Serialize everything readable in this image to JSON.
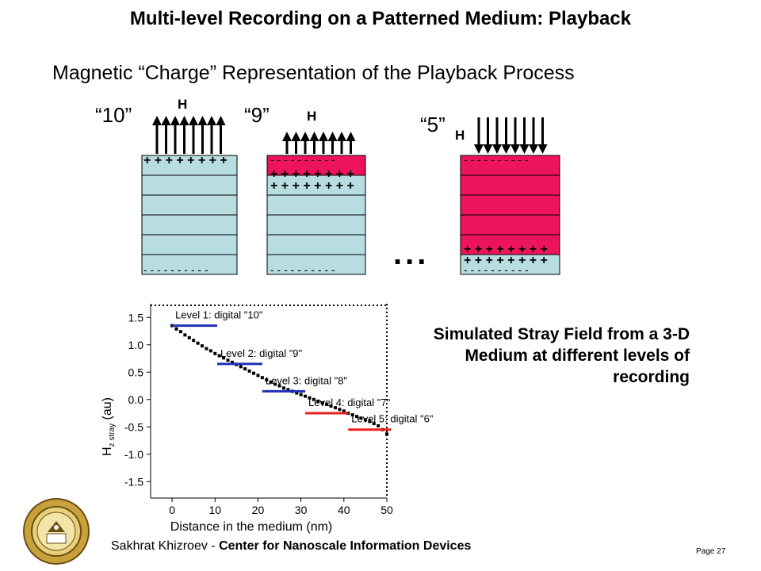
{
  "title": "Multi-level Recording on a Patterned Medium: Playback",
  "subtitle": "Magnetic “Charge” Representation of the Playback Process",
  "diagrams": [
    {
      "label": "“10”",
      "h_label": "H",
      "plus_row": "+ + + + + + + +",
      "minus_row_top": "",
      "plus_row2": "",
      "minus_row_bottom": "- - - - - - - - - -"
    },
    {
      "label": "“9”",
      "h_label": "H",
      "minus_row_top": "- - - - - - - - - -",
      "plus_row": "+ + + + + + + +",
      "plus_row2": "+ + + + + + + +",
      "minus_row_bottom": "- - - - - - - - - -"
    },
    {
      "label": "“5”",
      "h_label": "H",
      "minus_row_top": "- - - - - - - - - -",
      "plus_row": "+ + + + + + + +",
      "plus_row2": "+ + + + + + + +",
      "minus_row_bottom": "- - - - - - - - - -"
    }
  ],
  "ellipsis": "...",
  "side_text": [
    "Simulated Stray Field from a 3-D",
    "Medium at different levels of",
    "recording"
  ],
  "colors": {
    "layer": "#b7dde1",
    "magnetized": "#ee145b",
    "level_blue": "#1f2fb5",
    "level_red": "#e8201c"
  },
  "chart_data": {
    "type": "scatter",
    "xlabel": "Distance in the medium (nm)",
    "ylabel": "H z stray (au)",
    "ylabel_main": "H",
    "ylabel_sub": "z stray",
    "ylabel_unit": " (au)",
    "xlim": [
      -5,
      50
    ],
    "ylim": [
      -1.8,
      1.75
    ],
    "x_ticks": [
      0,
      10,
      20,
      30,
      40,
      50
    ],
    "y_ticks": [
      1.5,
      1.0,
      0.5,
      0.0,
      -0.5,
      -1.0,
      -1.5
    ],
    "x_tick_labels": [
      "0",
      "10",
      "20",
      "30",
      "40",
      "50"
    ],
    "y_tick_labels": [
      "1.5",
      "1.0",
      "0.5",
      "0.0",
      "-0.5",
      "-1.0",
      "-1.5"
    ],
    "series": [
      {
        "x": [
          0,
          1,
          2,
          3,
          4,
          5,
          6,
          7,
          8,
          9,
          10,
          11,
          12,
          13,
          14,
          15,
          16,
          17,
          18,
          19,
          20,
          21,
          22,
          23,
          24,
          25,
          26,
          27,
          28,
          29,
          30,
          31,
          32,
          33,
          34,
          35,
          36,
          37,
          38,
          39,
          40,
          41,
          42,
          43,
          44,
          45,
          46,
          47,
          48,
          49,
          50
        ],
        "y": [
          1.35,
          1.29,
          1.24,
          1.18,
          1.13,
          1.08,
          1.03,
          0.98,
          0.93,
          0.89,
          0.84,
          0.8,
          0.76,
          0.72,
          0.68,
          0.64,
          0.6,
          0.56,
          0.52,
          0.48,
          0.44,
          0.4,
          0.36,
          0.32,
          0.28,
          0.25,
          0.21,
          0.18,
          0.15,
          0.12,
          0.09,
          0.06,
          0.03,
          0.0,
          -0.03,
          -0.06,
          -0.09,
          -0.12,
          -0.15,
          -0.18,
          -0.21,
          -0.25,
          -0.28,
          -0.31,
          -0.34,
          -0.37,
          -0.4,
          -0.44,
          -0.48,
          -0.55,
          -0.63
        ]
      }
    ],
    "levels": [
      {
        "label": "Level 1: digital \"10\"",
        "x_start": 0,
        "x_end": 10.5,
        "y": 1.35,
        "color": "#1f2fb5"
      },
      {
        "label": "Level 2: digital \"9\"",
        "x_start": 10.5,
        "x_end": 21,
        "y": 0.65,
        "color": "#1f2fb5"
      },
      {
        "label": "Level 3: digital \"8\"",
        "x_start": 21,
        "x_end": 31,
        "y": 0.15,
        "color": "#1f2fb5"
      },
      {
        "label": "Level 4: digital \"7\"",
        "x_start": 31,
        "x_end": 41,
        "y": -0.25,
        "color": "#e8201c"
      },
      {
        "label": "Level 5: digital \"6\"",
        "x_start": 41,
        "x_end": 51,
        "y": -0.55,
        "color": "#e8201c"
      }
    ]
  },
  "footer": {
    "name": "Sakhrat Khizroev - ",
    "org": "Center for Nanoscale Information Devices"
  },
  "page_number": "Page 27"
}
